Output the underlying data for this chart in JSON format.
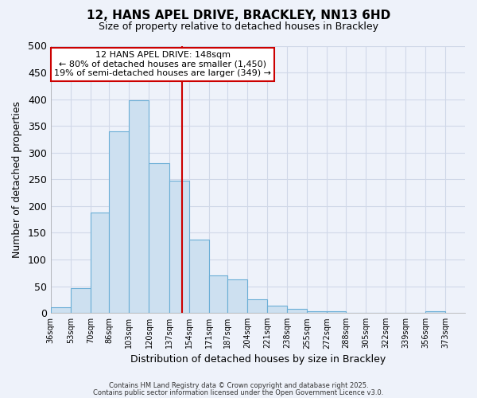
{
  "title": "12, HANS APEL DRIVE, BRACKLEY, NN13 6HD",
  "subtitle": "Size of property relative to detached houses in Brackley",
  "xlabel": "Distribution of detached houses by size in Brackley",
  "ylabel": "Number of detached properties",
  "bar_color": "#cde0f0",
  "bar_edge_color": "#6baed6",
  "background_color": "#eef2fa",
  "grid_color": "#d0d8e8",
  "bins": [
    36,
    53,
    70,
    86,
    103,
    120,
    137,
    154,
    171,
    187,
    204,
    221,
    238,
    255,
    272,
    288,
    305,
    322,
    339,
    356,
    373
  ],
  "counts": [
    10,
    47,
    188,
    340,
    398,
    280,
    247,
    137,
    70,
    63,
    25,
    13,
    7,
    3,
    3,
    1,
    0,
    0,
    0,
    3
  ],
  "tick_labels": [
    "36sqm",
    "53sqm",
    "70sqm",
    "86sqm",
    "103sqm",
    "120sqm",
    "137sqm",
    "154sqm",
    "171sqm",
    "187sqm",
    "204sqm",
    "221sqm",
    "238sqm",
    "255sqm",
    "272sqm",
    "288sqm",
    "305sqm",
    "322sqm",
    "339sqm",
    "356sqm",
    "373sqm"
  ],
  "vline_x": 148,
  "vline_color": "#cc0000",
  "annotation_title": "12 HANS APEL DRIVE: 148sqm",
  "annotation_line1": "← 80% of detached houses are smaller (1,450)",
  "annotation_line2": "19% of semi-detached houses are larger (349) →",
  "annotation_box_color": "#ffffff",
  "annotation_box_edge": "#cc0000",
  "ylim": [
    0,
    500
  ],
  "yticks": [
    0,
    50,
    100,
    150,
    200,
    250,
    300,
    350,
    400,
    450,
    500
  ],
  "xlim_min": 36,
  "xlim_max": 390,
  "footer1": "Contains HM Land Registry data © Crown copyright and database right 2025.",
  "footer2": "Contains public sector information licensed under the Open Government Licence v3.0."
}
